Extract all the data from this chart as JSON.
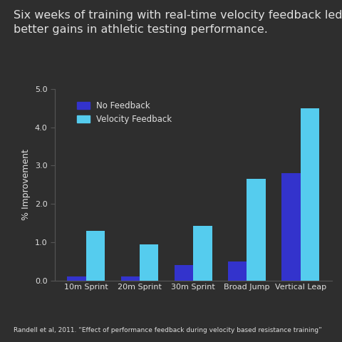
{
  "title": "Six weeks of training with real-time velocity feedback led to\nbetter gains in athletic testing performance.",
  "categories": [
    "10m Sprint",
    "20m Sprint",
    "30m Sprint",
    "Broad Jump",
    "Vertical Leap"
  ],
  "no_feedback": [
    0.1,
    0.1,
    0.4,
    0.5,
    2.8
  ],
  "velocity_feedback": [
    1.3,
    0.95,
    1.42,
    2.65,
    4.5
  ],
  "no_feedback_color": "#3333cc",
  "velocity_feedback_color": "#55ccee",
  "background_color": "#2e2e2e",
  "plot_bg_color": "#2e2e2e",
  "text_color": "#e0e0e0",
  "ylabel": "% Improvement",
  "ylim": [
    0,
    5.0
  ],
  "yticks": [
    0,
    1.0,
    2.0,
    3.0,
    4.0,
    5.0
  ],
  "footnote": "Randell et al, 2011. “Effect of performance feedback during velocity based resistance training”",
  "bar_width": 0.35,
  "legend_labels": [
    "No Feedback",
    "Velocity Feedback"
  ],
  "title_fontsize": 11.5,
  "footnote_fontsize": 6.5,
  "tick_fontsize": 8.0,
  "ylabel_fontsize": 9.0,
  "legend_fontsize": 8.5
}
